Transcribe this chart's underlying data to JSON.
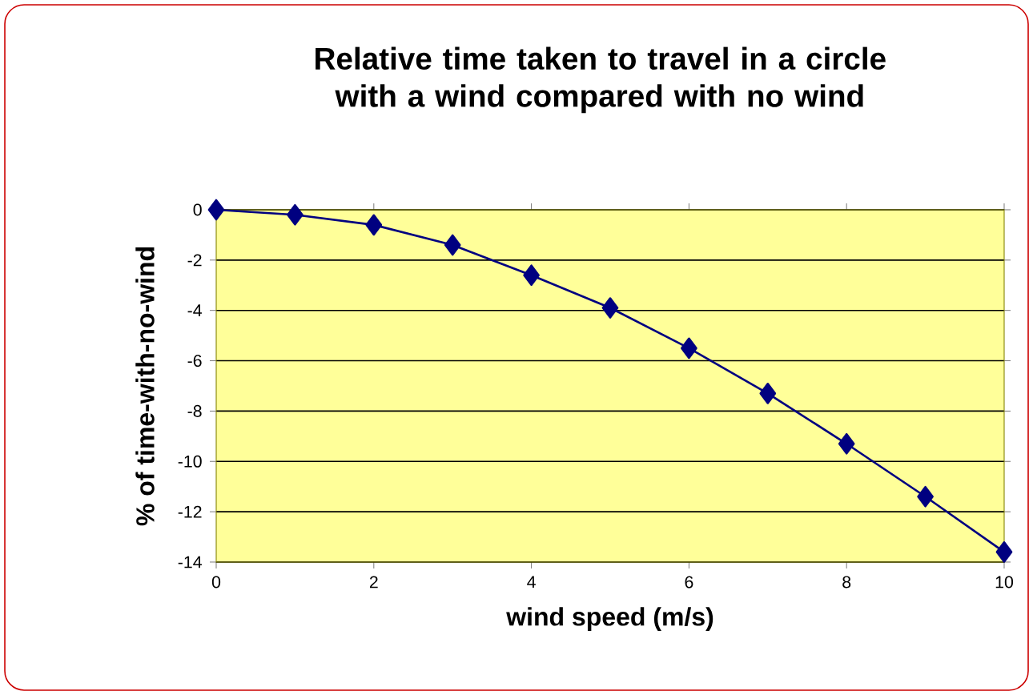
{
  "chart_data": {
    "type": "line",
    "title": "Relative time taken to travel in a circle with a wind compared with no wind",
    "xlabel": "wind speed (m/s)",
    "ylabel": "% of time-with-no-wind",
    "x": [
      0,
      1,
      2,
      3,
      4,
      5,
      6,
      7,
      8,
      9,
      10
    ],
    "values": [
      0,
      -0.2,
      -0.6,
      -1.4,
      -2.6,
      -3.9,
      -5.5,
      -7.3,
      -9.3,
      -11.4,
      -13.6
    ],
    "color": "#000080",
    "marker": "diamond",
    "line_style": "solid",
    "grid": "y",
    "xlim": [
      0,
      10
    ],
    "ylim": [
      -14,
      0
    ],
    "xticks": [
      0,
      2,
      4,
      6,
      8,
      10
    ],
    "yticks": [
      -14,
      -12,
      -10,
      -8,
      -6,
      -4,
      -2,
      0
    ]
  }
}
